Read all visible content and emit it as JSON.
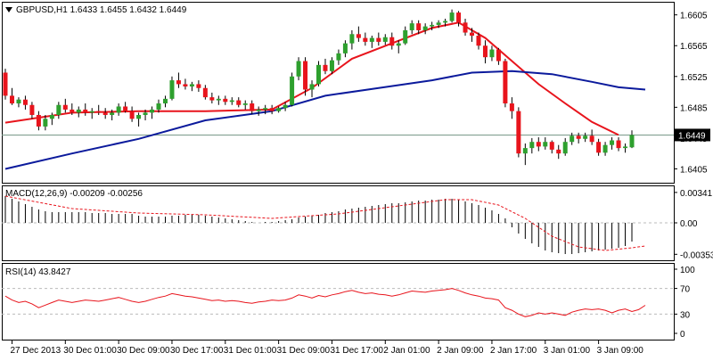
{
  "chart_data": [
    {
      "panel": "price",
      "type": "candlestick",
      "title": "GBPUSD,H1  1.6433 1.6455 1.6432 1.6449",
      "yticks": [
        "1.6605",
        "1.6565",
        "1.6525",
        "1.6485",
        "1.6445",
        "1.6405"
      ],
      "ytick_values": [
        1.6605,
        1.6565,
        1.6525,
        1.6485,
        1.6445,
        1.6405
      ],
      "ylim": [
        1.6387,
        1.6622
      ],
      "current_price_label": "1.6449",
      "current_price": 1.6449,
      "candles": [
        [
          1.653,
          1.6535,
          1.6495,
          1.65
        ],
        [
          1.65,
          1.651,
          1.6488,
          1.649
        ],
        [
          1.649,
          1.6498,
          1.6485,
          1.6495
        ],
        [
          1.6495,
          1.65,
          1.6482,
          1.6488
        ],
        [
          1.6488,
          1.6492,
          1.647,
          1.6475
        ],
        [
          1.6475,
          1.648,
          1.6455,
          1.646
        ],
        [
          1.646,
          1.6475,
          1.6455,
          1.647
        ],
        [
          1.647,
          1.6478,
          1.6462,
          1.6475
        ],
        [
          1.6475,
          1.6492,
          1.647,
          1.6488
        ],
        [
          1.6488,
          1.6496,
          1.6478,
          1.6482
        ],
        [
          1.6482,
          1.649,
          1.6475,
          1.6478
        ],
        [
          1.6478,
          1.6486,
          1.6472,
          1.6482
        ],
        [
          1.6482,
          1.649,
          1.6474,
          1.6478
        ],
        [
          1.6478,
          1.6484,
          1.647,
          1.648
        ],
        [
          1.648,
          1.6488,
          1.6475,
          1.6478
        ],
        [
          1.6478,
          1.6484,
          1.647,
          1.6475
        ],
        [
          1.6475,
          1.6482,
          1.6468,
          1.6478
        ],
        [
          1.6478,
          1.649,
          1.6474,
          1.6486
        ],
        [
          1.6486,
          1.6492,
          1.6478,
          1.648
        ],
        [
          1.648,
          1.6486,
          1.6466,
          1.647
        ],
        [
          1.647,
          1.6478,
          1.646,
          1.6475
        ],
        [
          1.6475,
          1.6482,
          1.6468,
          1.6478
        ],
        [
          1.6478,
          1.6486,
          1.647,
          1.6482
        ],
        [
          1.6482,
          1.6495,
          1.6478,
          1.649
        ],
        [
          1.649,
          1.65,
          1.6485,
          1.6496
        ],
        [
          1.6496,
          1.6525,
          1.6494,
          1.652
        ],
        [
          1.652,
          1.653,
          1.651,
          1.6515
        ],
        [
          1.6515,
          1.6522,
          1.6508,
          1.6512
        ],
        [
          1.6512,
          1.6518,
          1.6506,
          1.6515
        ],
        [
          1.6515,
          1.652,
          1.6505,
          1.651
        ],
        [
          1.651,
          1.6514,
          1.6495,
          1.6498
        ],
        [
          1.6498,
          1.6504,
          1.649,
          1.6494
        ],
        [
          1.6494,
          1.65,
          1.6488,
          1.6496
        ],
        [
          1.6496,
          1.65,
          1.6488,
          1.6492
        ],
        [
          1.6492,
          1.6498,
          1.6488,
          1.6494
        ],
        [
          1.6494,
          1.6498,
          1.6485,
          1.6488
        ],
        [
          1.6488,
          1.6494,
          1.6482,
          1.649
        ],
        [
          1.649,
          1.6494,
          1.6476,
          1.648
        ],
        [
          1.648,
          1.6486,
          1.6474,
          1.6482
        ],
        [
          1.6482,
          1.6488,
          1.6476,
          1.6484
        ],
        [
          1.6484,
          1.6488,
          1.6476,
          1.648
        ],
        [
          1.648,
          1.6486,
          1.6478,
          1.6484
        ],
        [
          1.6484,
          1.6492,
          1.648,
          1.6488
        ],
        [
          1.6488,
          1.653,
          1.6486,
          1.6525
        ],
        [
          1.6525,
          1.655,
          1.652,
          1.6545
        ],
        [
          1.6545,
          1.655,
          1.65,
          1.6508
        ],
        [
          1.6508,
          1.652,
          1.6498,
          1.6515
        ],
        [
          1.6515,
          1.6545,
          1.6512,
          1.654
        ],
        [
          1.654,
          1.6548,
          1.6528,
          1.6532
        ],
        [
          1.6532,
          1.655,
          1.6528,
          1.6546
        ],
        [
          1.6546,
          1.656,
          1.654,
          1.6555
        ],
        [
          1.6555,
          1.6572,
          1.655,
          1.6568
        ],
        [
          1.6568,
          1.6585,
          1.656,
          1.658
        ],
        [
          1.658,
          1.659,
          1.657,
          1.6575
        ],
        [
          1.6575,
          1.6582,
          1.6565,
          1.657
        ],
        [
          1.657,
          1.6578,
          1.6562,
          1.6575
        ],
        [
          1.6575,
          1.6582,
          1.6565,
          1.657
        ],
        [
          1.657,
          1.658,
          1.6566,
          1.6576
        ],
        [
          1.6576,
          1.6582,
          1.656,
          1.6565
        ],
        [
          1.6565,
          1.6572,
          1.6555,
          1.6568
        ],
        [
          1.6568,
          1.659,
          1.6566,
          1.6585
        ],
        [
          1.6585,
          1.6598,
          1.658,
          1.6594
        ],
        [
          1.6594,
          1.6598,
          1.658,
          1.6585
        ],
        [
          1.6585,
          1.6594,
          1.658,
          1.659
        ],
        [
          1.659,
          1.6596,
          1.6585,
          1.6592
        ],
        [
          1.6592,
          1.6598,
          1.6588,
          1.6595
        ],
        [
          1.6595,
          1.66,
          1.659,
          1.6597
        ],
        [
          1.6597,
          1.6612,
          1.6595,
          1.6608
        ],
        [
          1.6608,
          1.661,
          1.659,
          1.6595
        ],
        [
          1.6595,
          1.66,
          1.6578,
          1.6582
        ],
        [
          1.6582,
          1.6588,
          1.657,
          1.6578
        ],
        [
          1.6578,
          1.6582,
          1.656,
          1.6565
        ],
        [
          1.6565,
          1.6572,
          1.6542,
          1.655
        ],
        [
          1.655,
          1.6565,
          1.6545,
          1.656
        ],
        [
          1.656,
          1.6562,
          1.654,
          1.6545
        ],
        [
          1.6545,
          1.6548,
          1.6485,
          1.649
        ],
        [
          1.649,
          1.6498,
          1.647,
          1.648
        ],
        [
          1.648,
          1.6485,
          1.642,
          1.6425
        ],
        [
          1.6425,
          1.6438,
          1.641,
          1.6432
        ],
        [
          1.6432,
          1.6445,
          1.6425,
          1.644
        ],
        [
          1.644,
          1.6446,
          1.6428,
          1.6434
        ],
        [
          1.6434,
          1.6446,
          1.643,
          1.644
        ],
        [
          1.644,
          1.6442,
          1.6425,
          1.643
        ],
        [
          1.643,
          1.6436,
          1.6418,
          1.6425
        ],
        [
          1.6425,
          1.6445,
          1.6422,
          1.644
        ],
        [
          1.644,
          1.6452,
          1.6436,
          1.6448
        ],
        [
          1.6448,
          1.6452,
          1.6438,
          1.6444
        ],
        [
          1.6444,
          1.6452,
          1.644,
          1.6448
        ],
        [
          1.6448,
          1.6456,
          1.6436,
          1.644
        ],
        [
          1.644,
          1.6444,
          1.6422,
          1.6426
        ],
        [
          1.6426,
          1.644,
          1.6422,
          1.6436
        ],
        [
          1.6436,
          1.6446,
          1.643,
          1.6442
        ],
        [
          1.6442,
          1.6446,
          1.6428,
          1.6432
        ],
        [
          1.6432,
          1.6438,
          1.6426,
          1.6434
        ],
        [
          1.6433,
          1.6455,
          1.6432,
          1.6449
        ]
      ],
      "series": [
        {
          "color": "#e8141c",
          "points": [
            [
              0,
              1.6465
            ],
            [
              10,
              1.6478
            ],
            [
              20,
              1.648
            ],
            [
              30,
              1.648
            ],
            [
              40,
              1.6482
            ],
            [
              46,
              1.651
            ],
            [
              52,
              1.6548
            ],
            [
              58,
              1.6568
            ],
            [
              64,
              1.6588
            ],
            [
              68,
              1.6595
            ],
            [
              72,
              1.6575
            ],
            [
              76,
              1.6545
            ],
            [
              80,
              1.6515
            ],
            [
              84,
              1.649
            ],
            [
              88,
              1.6466
            ],
            [
              92,
              1.6449
            ]
          ]
        },
        {
          "color": "#0b1a9c",
          "points": [
            [
              0,
              1.6405
            ],
            [
              10,
              1.6425
            ],
            [
              20,
              1.6444
            ],
            [
              30,
              1.6468
            ],
            [
              40,
              1.648
            ],
            [
              48,
              1.65
            ],
            [
              56,
              1.651
            ],
            [
              64,
              1.652
            ],
            [
              70,
              1.653
            ],
            [
              76,
              1.6532
            ],
            [
              82,
              1.6528
            ],
            [
              88,
              1.6518
            ],
            [
              92,
              1.6511
            ],
            [
              96,
              1.6508
            ]
          ]
        }
      ]
    },
    {
      "panel": "macd",
      "type": "bar",
      "title": "MACD(12,26,9) -0.00209 -0.00256",
      "yticks": [
        "0.00341",
        "0.00",
        "-0.00353"
      ],
      "ytick_values": [
        0.00341,
        0.0,
        -0.00353
      ],
      "ylim": [
        -0.0042,
        0.0042
      ],
      "histogram": [
        0.003,
        0.0027,
        0.0024,
        0.0021,
        0.0018,
        0.0015,
        0.0013,
        0.0012,
        0.0012,
        0.0012,
        0.0012,
        0.0012,
        0.0012,
        0.0011,
        0.0011,
        0.0011,
        0.001,
        0.001,
        0.001,
        0.001,
        0.0008,
        0.0007,
        0.0007,
        0.0007,
        0.0007,
        0.0008,
        0.0008,
        0.0009,
        0.0009,
        0.0009,
        0.0008,
        0.0007,
        0.0006,
        0.0005,
        0.0004,
        0.0003,
        0.0002,
        0.0001,
        0.0,
        0.0001,
        0.0001,
        0.0002,
        0.0003,
        0.0004,
        0.0006,
        0.0007,
        0.0008,
        0.0009,
        0.0011,
        0.0012,
        0.0013,
        0.0015,
        0.0016,
        0.0017,
        0.0018,
        0.0019,
        0.002,
        0.0021,
        0.0022,
        0.0022,
        0.0023,
        0.0024,
        0.0025,
        0.0025,
        0.0026,
        0.0026,
        0.0027,
        0.0027,
        0.0026,
        0.0024,
        0.0022,
        0.002,
        0.0017,
        0.0014,
        0.001,
        0.0005,
        -0.0005,
        -0.0012,
        -0.0018,
        -0.0023,
        -0.0027,
        -0.0031,
        -0.0033,
        -0.0034,
        -0.0035,
        -0.0035,
        -0.0034,
        -0.0033,
        -0.0032,
        -0.0031,
        -0.003,
        -0.0029,
        -0.0028,
        -0.0026,
        -0.0021
      ],
      "signal_color": "#e8141c",
      "signal": [
        [
          0,
          0.003
        ],
        [
          10,
          0.0016
        ],
        [
          20,
          0.0011
        ],
        [
          30,
          0.0009
        ],
        [
          40,
          0.0005
        ],
        [
          50,
          0.001
        ],
        [
          60,
          0.002
        ],
        [
          66,
          0.0026
        ],
        [
          70,
          0.0026
        ],
        [
          74,
          0.002
        ],
        [
          78,
          0.0005
        ],
        [
          82,
          -0.0015
        ],
        [
          86,
          -0.0027
        ],
        [
          90,
          -0.0031
        ],
        [
          94,
          -0.0028
        ],
        [
          96,
          -0.0026
        ]
      ]
    },
    {
      "panel": "rsi",
      "type": "line",
      "title": "RSI(14) 43.8427",
      "yticks": [
        "100",
        "70",
        "30",
        "0"
      ],
      "ytick_values": [
        100,
        70,
        30,
        0
      ],
      "ylim": [
        0,
        100
      ],
      "levels": [
        70,
        30
      ],
      "series": [
        {
          "color": "#e8141c",
          "values": [
            58,
            52,
            48,
            50,
            46,
            40,
            44,
            48,
            52,
            50,
            48,
            50,
            52,
            51,
            50,
            52,
            54,
            56,
            53,
            50,
            48,
            50,
            53,
            56,
            58,
            62,
            60,
            58,
            57,
            55,
            53,
            51,
            52,
            50,
            51,
            50,
            48,
            47,
            49,
            50,
            52,
            51,
            52,
            55,
            60,
            58,
            55,
            59,
            57,
            60,
            62,
            65,
            67,
            64,
            62,
            63,
            61,
            60,
            58,
            60,
            63,
            66,
            65,
            64,
            66,
            67,
            68,
            70,
            67,
            63,
            60,
            58,
            55,
            54,
            52,
            40,
            36,
            30,
            26,
            28,
            32,
            30,
            32,
            30,
            28,
            33,
            36,
            38,
            37,
            38,
            36,
            32,
            36,
            38,
            34,
            37,
            43.8
          ]
        }
      ]
    },
    {
      "panel": "time-axis",
      "xticks": [
        "27 Dec 2013",
        "30 Dec 01:00",
        "30 Dec 09:00",
        "30 Dec 17:00",
        "31 Dec 01:00",
        "31 Dec 09:00",
        "31 Dec 17:00",
        "2 Jan 01:00",
        "2 Jan 09:00",
        "2 Jan 17:00",
        "3 Jan 01:00",
        "3 Jan 09:00"
      ],
      "xtick_index": [
        1,
        9,
        17,
        25,
        33,
        41,
        49,
        57,
        65,
        73,
        81,
        89
      ]
    }
  ]
}
